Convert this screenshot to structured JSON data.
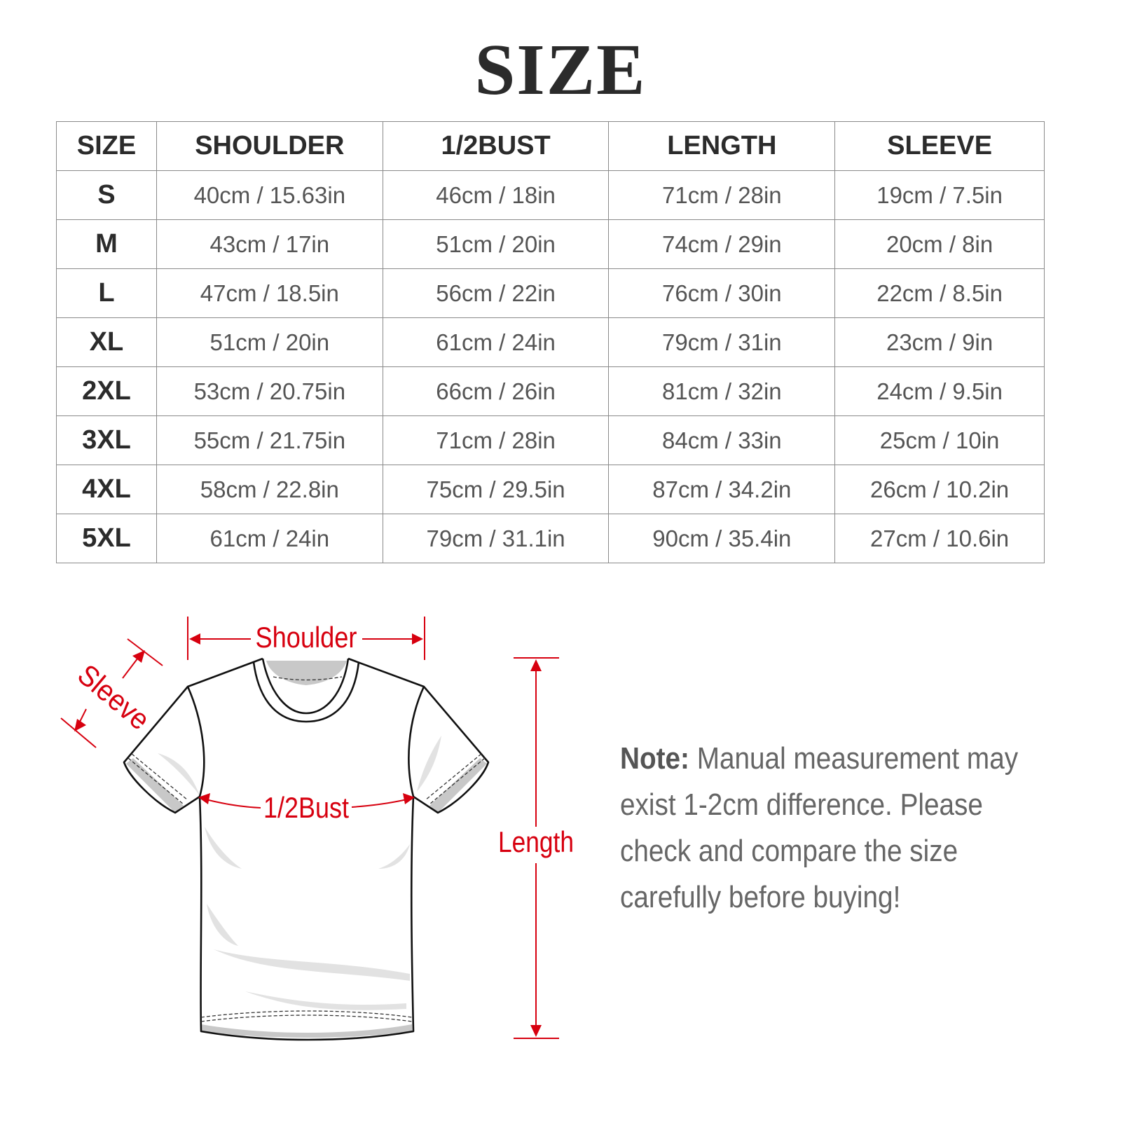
{
  "title": "SIZE",
  "table": {
    "headers": [
      "SIZE",
      "SHOULDER",
      "1/2BUST",
      "LENGTH",
      "SLEEVE"
    ],
    "rows": [
      [
        "S",
        "40cm / 15.63in",
        "46cm / 18in",
        "71cm / 28in",
        "19cm / 7.5in"
      ],
      [
        "M",
        "43cm / 17in",
        "51cm / 20in",
        "74cm / 29in",
        "20cm / 8in"
      ],
      [
        "L",
        "47cm / 18.5in",
        "56cm / 22in",
        "76cm / 30in",
        "22cm / 8.5in"
      ],
      [
        "XL",
        "51cm / 20in",
        "61cm / 24in",
        "79cm / 31in",
        "23cm / 9in"
      ],
      [
        "2XL",
        "53cm / 20.75in",
        "66cm / 26in",
        "81cm / 32in",
        "24cm / 9.5in"
      ],
      [
        "3XL",
        "55cm / 21.75in",
        "71cm / 28in",
        "84cm / 33in",
        "25cm / 10in"
      ],
      [
        "4XL",
        "58cm / 22.8in",
        "75cm / 29.5in",
        "87cm / 34.2in",
        "26cm / 10.2in"
      ],
      [
        "5XL",
        "61cm / 24in",
        "79cm / 31.1in",
        "90cm / 35.4in",
        "27cm / 10.6in"
      ]
    ]
  },
  "diagram": {
    "shoulder_label": "Shoulder",
    "sleeve_label": "Sleeve",
    "bust_label": "1/2Bust",
    "length_label": "Length",
    "accent_color": "#d7000f"
  },
  "note": {
    "label": "Note:",
    "text": " Manual measurement may exist 1-2cm difference. Please check and compare the size carefully before buying!"
  }
}
